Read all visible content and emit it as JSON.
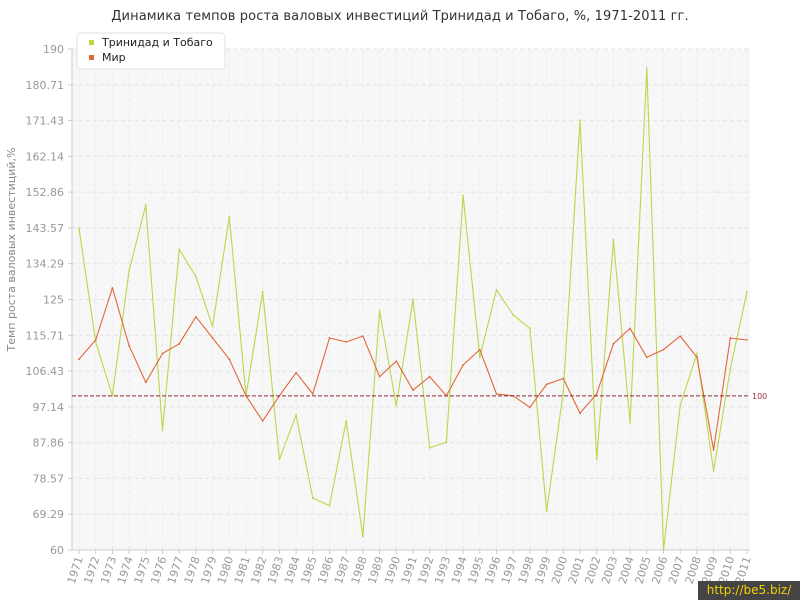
{
  "chart_data": {
    "type": "line",
    "title": "Динамика темпов роста валовых инвестиций Тринидад и Тобаго, %, 1971-2011 гг.",
    "ylabel": "Темп роста валовых инвестиций,%",
    "xlabel": "",
    "ylim": [
      60,
      190
    ],
    "y_ticks": [
      "60",
      "69.29",
      "78.57",
      "87.86",
      "97.14",
      "106.43",
      "115.71",
      "125",
      "134.29",
      "143.57",
      "152.86",
      "162.14",
      "171.43",
      "180.71",
      "190"
    ],
    "x": [
      "1971",
      "1972",
      "1973",
      "1974",
      "1975",
      "1976",
      "1977",
      "1978",
      "1979",
      "1980",
      "1981",
      "1982",
      "1983",
      "1984",
      "1985",
      "1986",
      "1987",
      "1988",
      "1989",
      "1990",
      "1991",
      "1992",
      "1993",
      "1994",
      "1995",
      "1996",
      "1997",
      "1998",
      "1999",
      "2000",
      "2001",
      "2002",
      "2003",
      "2004",
      "2005",
      "2006",
      "2007",
      "2008",
      "2009",
      "2010",
      "2011"
    ],
    "series": [
      {
        "name": "Тринидад и Тобаго",
        "color": "#b8d84a",
        "values": [
          143.5,
          114,
          100,
          132.5,
          149.5,
          91,
          138,
          131,
          118,
          146.5,
          100,
          127,
          83.5,
          95,
          73.5,
          71.5,
          93.5,
          63.5,
          122,
          97.5,
          125,
          86.5,
          88,
          152,
          110,
          127.5,
          121,
          117.5,
          70,
          101,
          171.5,
          83.5,
          140.5,
          93,
          185,
          60,
          97.5,
          111,
          80.5,
          107,
          127
        ]
      },
      {
        "name": "Мир",
        "color": "#e0673a",
        "values": [
          109.5,
          114.5,
          128,
          113,
          103.5,
          111,
          113.5,
          120.5,
          115,
          109.5,
          100,
          93.5,
          100,
          106,
          100.5,
          115,
          114,
          115.5,
          105,
          109,
          101.5,
          105,
          100,
          108,
          112,
          100.5,
          100,
          97,
          103,
          104.5,
          95.5,
          100.5,
          113.5,
          117.5,
          110,
          112,
          115.5,
          110,
          86,
          115,
          114.5
        ]
      }
    ],
    "reference_line": {
      "value": 100,
      "label": "100",
      "color": "#8b2b32"
    },
    "grid": true,
    "legend_position": "top-left"
  },
  "watermark": "http://be5.biz/"
}
